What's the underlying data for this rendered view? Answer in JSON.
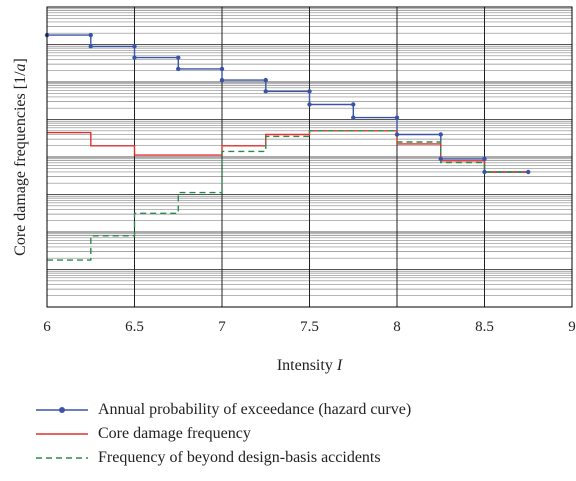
{
  "chart_data": {
    "type": "line",
    "xlabel": "Intensity",
    "xlabel_var": "I",
    "ylabel": "Core damage frequencies [1/",
    "ylabel_var": "a",
    "ylabel_end": "]",
    "xlim": [
      6,
      9
    ],
    "xticks": [
      "6",
      "6.5",
      "7",
      "7.5",
      "8",
      "8.5",
      "9"
    ],
    "ylim": [
      -8,
      0
    ],
    "log_scale_y": true,
    "grid": true,
    "legend_position": "bottom",
    "series": [
      {
        "name": "Annual probability of exceedance (hazard curve)",
        "color": "#3a55a8",
        "style": "solid-markers",
        "x": [
          6,
          6.25,
          6.25,
          6.5,
          6.5,
          6.75,
          6.75,
          7,
          7,
          7.25,
          7.25,
          7.5,
          7.5,
          7.75,
          7.75,
          8,
          8,
          8.25,
          8.25,
          8.5,
          8.5,
          8.75
        ],
        "y": [
          -0.75,
          -0.75,
          -1.05,
          -1.05,
          -1.35,
          -1.35,
          -1.65,
          -1.65,
          -1.95,
          -1.95,
          -2.25,
          -2.25,
          -2.6,
          -2.6,
          -2.95,
          -2.95,
          -3.4,
          -3.4,
          -4.05,
          -4.05,
          -4.4,
          -4.4
        ]
      },
      {
        "name": "Core damage frequency",
        "color": "#e03030",
        "style": "solid",
        "x": [
          6,
          6.25,
          6.25,
          6.5,
          6.5,
          7,
          7,
          7.25,
          7.25,
          7.5,
          7.5,
          8,
          8,
          8.25,
          8.25,
          8.5,
          8.5,
          8.75
        ],
        "y": [
          -3.35,
          -3.35,
          -3.7,
          -3.7,
          -3.95,
          -3.95,
          -3.7,
          -3.7,
          -3.4,
          -3.4,
          -3.3,
          -3.3,
          -3.65,
          -3.65,
          -4.1,
          -4.1,
          -4.4,
          -4.4
        ]
      },
      {
        "name": "Frequency of beyond design-basis accidents",
        "color": "#2a8a4a",
        "style": "dashed",
        "x": [
          6,
          6.25,
          6.25,
          6.5,
          6.5,
          6.75,
          6.75,
          7,
          7,
          7.25,
          7.25,
          7.5,
          7.5,
          8,
          8,
          8.25,
          8.25,
          8.5,
          8.5,
          8.75
        ],
        "y": [
          -6.75,
          -6.75,
          -6.1,
          -6.1,
          -5.5,
          -5.5,
          -4.95,
          -4.95,
          -3.85,
          -3.85,
          -3.45,
          -3.45,
          -3.3,
          -3.3,
          -3.6,
          -3.6,
          -4.15,
          -4.15,
          -4.4,
          -4.4
        ]
      }
    ]
  }
}
